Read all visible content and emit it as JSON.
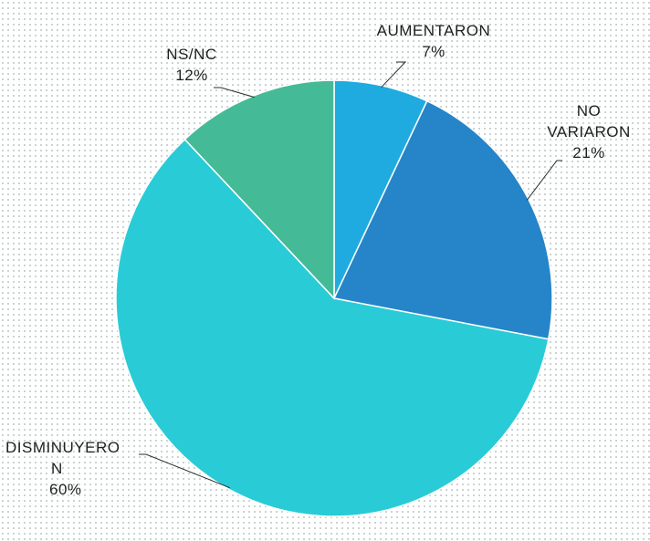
{
  "chart_data": {
    "type": "pie",
    "title": "",
    "start_angle_deg": 0,
    "direction": "clockwise",
    "slices": [
      {
        "name_lines": [
          "AUMENTARON"
        ],
        "value": 7,
        "value_label": "7%",
        "color": "#1fabe0"
      },
      {
        "name_lines": [
          "NO",
          "VARIARON"
        ],
        "value": 21,
        "value_label": "21%",
        "color": "#2585c8"
      },
      {
        "name_lines": [
          "DISMINUYERO",
          "N"
        ],
        "value": 60,
        "value_label": "60%",
        "color": "#29ccd6"
      },
      {
        "name_lines": [
          "NS/NC"
        ],
        "value": 12,
        "value_label": "12%",
        "color": "#45ba96"
      }
    ]
  }
}
